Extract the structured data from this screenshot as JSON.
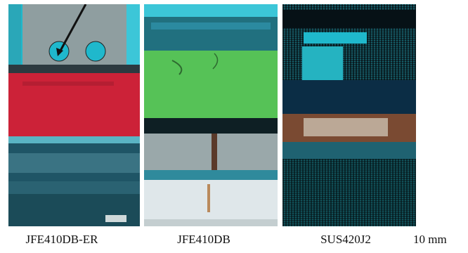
{
  "panels": [
    {
      "label": "JFE410DB-ER"
    },
    {
      "label": "JFE410DB"
    },
    {
      "label": "SUS420J2"
    }
  ],
  "scale_bar": {
    "label": "10 mm"
  },
  "colors": {
    "cyan": "#1fb8cc",
    "red": "#cc2238",
    "green": "#56c257",
    "gray": "#8f9ea0",
    "teal_dark": "#1f5566",
    "rust": "#7a4a32"
  }
}
